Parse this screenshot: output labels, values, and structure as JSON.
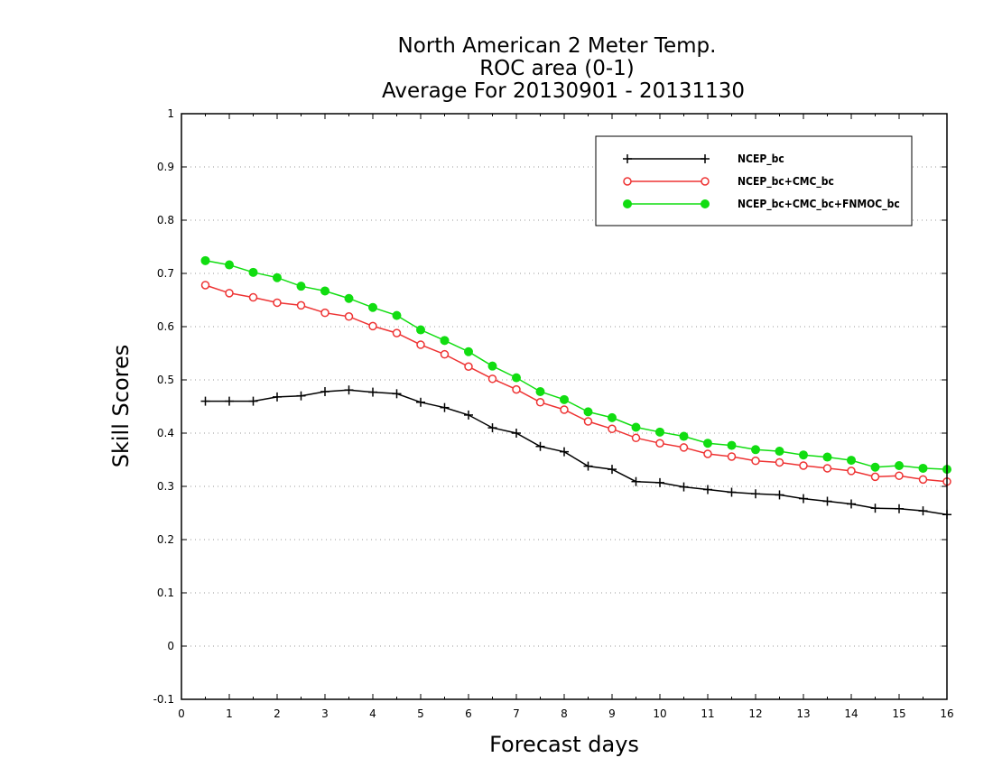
{
  "chart_data": {
    "type": "line",
    "title": [
      "North American 2 Meter Temp.",
      "ROC area (0-1)",
      "Average For 20130901 - 20131130"
    ],
    "xlabel": "Forecast days",
    "ylabel": "Skill Scores",
    "xlim": [
      0,
      16
    ],
    "ylim": [
      -0.1,
      1
    ],
    "xticks": [
      0,
      1,
      2,
      3,
      4,
      5,
      6,
      7,
      8,
      9,
      10,
      11,
      12,
      13,
      14,
      15,
      16
    ],
    "yticks": [
      -0.1,
      0,
      0.1,
      0.2,
      0.3,
      0.4,
      0.5,
      0.6,
      0.7,
      0.8,
      0.9,
      1
    ],
    "ytick_labels": [
      "-0.1",
      "0",
      "0.1",
      "0.2",
      "0.3",
      "0.4",
      "0.5",
      "0.6",
      "0.7",
      "0.8",
      "0.9",
      "1"
    ],
    "grid": "horizontal dotted",
    "legend_position": "top-right",
    "x": [
      0.5,
      1,
      1.5,
      2,
      2.5,
      3,
      3.5,
      4,
      4.5,
      5,
      5.5,
      6,
      6.5,
      7,
      7.5,
      8,
      8.5,
      9,
      9.5,
      10,
      10.5,
      11,
      11.5,
      12,
      12.5,
      13,
      13.5,
      14,
      14.5,
      15,
      15.5,
      16
    ],
    "series": [
      {
        "name": "NCEP_bc",
        "color": "#000000",
        "marker": "plus",
        "values": [
          0.46,
          0.46,
          0.46,
          0.468,
          0.47,
          0.478,
          0.481,
          0.477,
          0.474,
          0.458,
          0.448,
          0.434,
          0.41,
          0.4,
          0.375,
          0.365,
          0.338,
          0.332,
          0.309,
          0.307,
          0.299,
          0.294,
          0.289,
          0.286,
          0.284,
          0.277,
          0.272,
          0.267,
          0.259,
          0.258,
          0.254,
          0.247
        ]
      },
      {
        "name": "NCEP_bc+CMC_bc",
        "color": "#ee3333",
        "marker": "open-circle",
        "values": [
          0.678,
          0.663,
          0.655,
          0.645,
          0.64,
          0.626,
          0.619,
          0.601,
          0.588,
          0.566,
          0.548,
          0.525,
          0.502,
          0.482,
          0.458,
          0.444,
          0.422,
          0.408,
          0.391,
          0.381,
          0.373,
          0.361,
          0.356,
          0.348,
          0.345,
          0.339,
          0.334,
          0.329,
          0.318,
          0.32,
          0.313,
          0.309
        ]
      },
      {
        "name": "NCEP_bc+CMC_bc+FNMOC_bc",
        "color": "#11dd11",
        "marker": "filled-circle",
        "values": [
          0.724,
          0.716,
          0.702,
          0.692,
          0.676,
          0.667,
          0.653,
          0.636,
          0.621,
          0.594,
          0.574,
          0.553,
          0.526,
          0.504,
          0.478,
          0.463,
          0.44,
          0.429,
          0.411,
          0.402,
          0.394,
          0.381,
          0.377,
          0.369,
          0.366,
          0.359,
          0.355,
          0.349,
          0.336,
          0.339,
          0.334,
          0.332
        ]
      }
    ]
  }
}
